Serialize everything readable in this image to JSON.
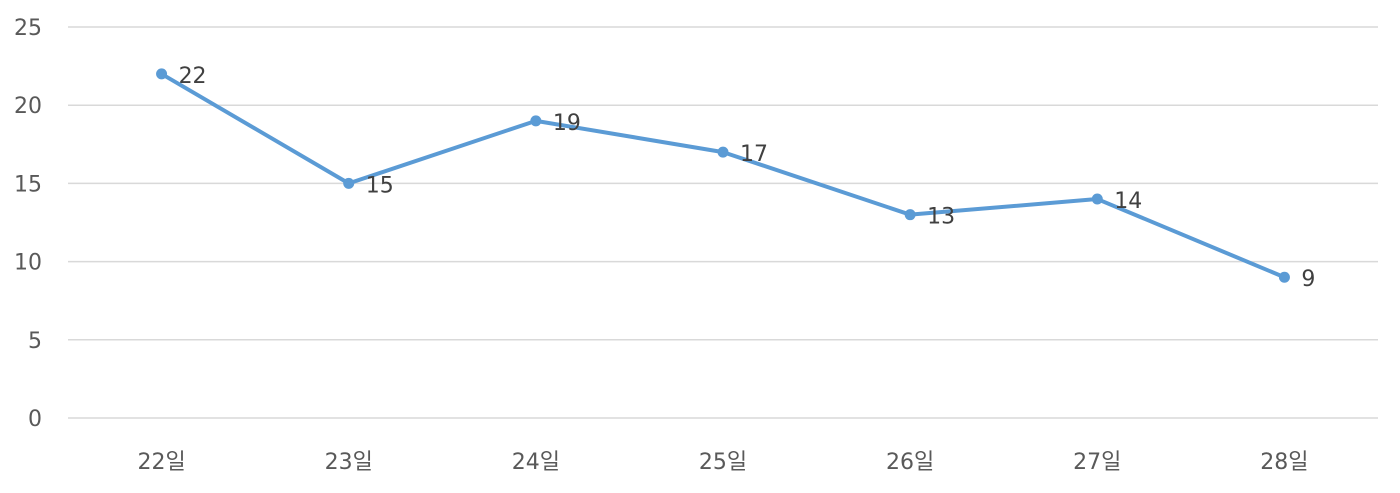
{
  "chart_data": {
    "type": "line",
    "categories": [
      "22일",
      "23일",
      "24일",
      "25일",
      "26일",
      "27일",
      "28일"
    ],
    "series": [
      {
        "values": [
          22,
          15,
          19,
          17,
          13,
          14,
          9
        ]
      }
    ],
    "ylim": [
      0,
      25
    ],
    "yticks": [
      "0",
      "5",
      "10",
      "15",
      "20",
      "25"
    ],
    "grid": true,
    "legend": "none",
    "data_labels": true,
    "colors": {
      "line": "#5b9bd5"
    }
  }
}
